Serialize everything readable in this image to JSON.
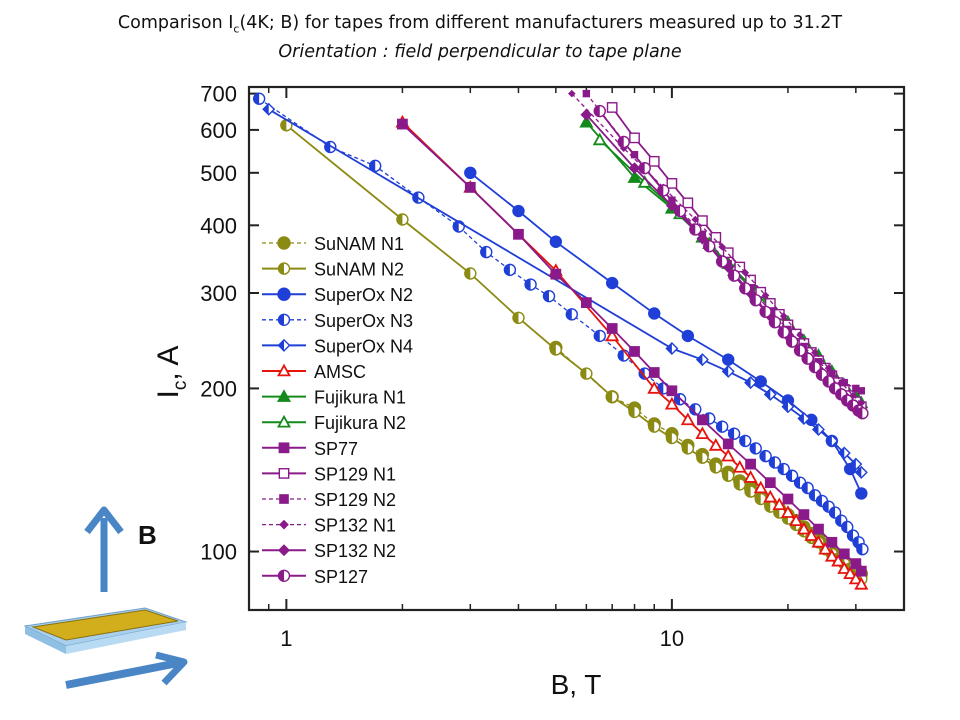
{
  "title": {
    "line1_pre": "Comparison I",
    "line1_sub": "c",
    "line1_post": "(4K; B) for tapes from different manufacturers measured up to 31.2T",
    "line2": "Orientation : field perpendicular to tape plane"
  },
  "illustration": {
    "field_label": "B",
    "colors": {
      "tape_top": "#d4b020",
      "tape_edge": "#9ec8e8",
      "arrow": "#4a86c6"
    }
  },
  "chart_data": {
    "type": "scatter",
    "xscale": "log",
    "yscale": "log",
    "xlim": [
      0.8,
      40
    ],
    "ylim": [
      78,
      720
    ],
    "xlabel": "B, T",
    "ylabel_main": "I",
    "ylabel_sub": "c",
    "ylabel_unit": ", A",
    "xticks": [
      {
        "value": 1,
        "label": "1"
      },
      {
        "value": 10,
        "label": "10"
      }
    ],
    "yticks": [
      {
        "value": 100,
        "label": "100"
      },
      {
        "value": 200,
        "label": "200"
      },
      {
        "value": 300,
        "label": "300"
      },
      {
        "value": 400,
        "label": "400"
      },
      {
        "value": 500,
        "label": "500"
      },
      {
        "value": 600,
        "label": "600"
      },
      {
        "value": 700,
        "label": "700"
      }
    ],
    "legend_position": "left",
    "series": [
      {
        "name": "SuNAM N1",
        "color": "#8b8a12",
        "marker": "circle",
        "dashed": true,
        "x": [
          5,
          7,
          8,
          9,
          10,
          11,
          12,
          13,
          14,
          15,
          16,
          17,
          18,
          19,
          20,
          21,
          22,
          23,
          24,
          25,
          26,
          27,
          28,
          29,
          30,
          31
        ],
        "y": [
          238,
          193,
          184,
          172,
          165,
          157,
          151,
          145,
          140,
          135,
          131,
          127,
          123,
          120,
          117,
          114,
          111,
          108,
          106,
          103,
          101,
          98,
          96,
          94,
          93,
          91
        ]
      },
      {
        "name": "SuNAM N2",
        "color": "#8b8a12",
        "marker": "halfcircle",
        "dashed": false,
        "x": [
          1,
          2,
          3,
          4,
          5,
          6,
          7,
          8,
          9,
          10,
          11,
          12,
          13,
          14,
          15,
          16,
          17,
          18,
          19,
          20,
          21,
          22,
          23,
          24,
          25,
          26,
          27,
          28,
          29,
          30,
          31
        ],
        "y": [
          612,
          410,
          326,
          270,
          236,
          213,
          193,
          181,
          170,
          162,
          155,
          149,
          143,
          138,
          133,
          129,
          125,
          121,
          118,
          115,
          112,
          109,
          106,
          104,
          101,
          99,
          97,
          95,
          93,
          91,
          89
        ]
      },
      {
        "name": "SuperOx N2",
        "color": "#1f3fd6",
        "marker": "circle",
        "dashed": false,
        "x": [
          3,
          4,
          5,
          7,
          9,
          11,
          14,
          17,
          20,
          23,
          26,
          29,
          31
        ],
        "y": [
          500,
          425,
          373,
          313,
          275,
          250,
          226,
          206,
          190,
          175,
          160,
          142,
          128
        ]
      },
      {
        "name": "SuperOx N3",
        "color": "#1f3fd6",
        "marker": "halfcircle",
        "dashed": true,
        "x": [
          0.85,
          1.3,
          1.7,
          2.2,
          2.8,
          3.3,
          3.8,
          4.3,
          4.8,
          5.5,
          6.5,
          7.5,
          8.5,
          9.5,
          10.5,
          11.5,
          12.5,
          13.5,
          14.5,
          15.5,
          16.5,
          17.5,
          18.5,
          19.5,
          20.5,
          21.5,
          22.5,
          23.5,
          24.5,
          25.5,
          26.5,
          27.5,
          28.5,
          29.5,
          30.5,
          31.2
        ],
        "y": [
          685,
          558,
          515,
          450,
          398,
          357,
          331,
          311,
          296,
          274,
          250,
          230,
          213,
          200,
          191,
          183,
          176,
          170,
          165,
          160,
          155,
          150,
          146,
          142,
          138,
          134,
          131,
          127,
          124,
          121,
          118,
          114,
          111,
          107,
          104,
          101
        ]
      },
      {
        "name": "SuperOx N4",
        "color": "#1f3fd6",
        "marker": "halfdiamond",
        "dashed": false,
        "x": [
          0.9,
          10,
          12,
          14,
          16,
          18,
          20,
          22,
          24,
          26,
          28,
          30,
          31
        ],
        "y": [
          655,
          237,
          226,
          215,
          205,
          195,
          185,
          176,
          168,
          160,
          152,
          145,
          140
        ]
      },
      {
        "name": "AMSC",
        "color": "#e8120c",
        "marker": "triangle",
        "dashed": false,
        "x": [
          2,
          3,
          5,
          7,
          9,
          10,
          11,
          12,
          13,
          14,
          15,
          16,
          17,
          18,
          19,
          20,
          21,
          22,
          23,
          24,
          25,
          26,
          27,
          28,
          29,
          30,
          31
        ],
        "y": [
          620,
          470,
          330,
          250,
          200,
          187,
          175,
          165,
          157,
          150,
          143,
          137,
          131,
          126,
          122,
          118,
          114,
          110,
          107,
          104,
          101,
          98,
          96,
          93,
          91,
          89,
          87
        ]
      },
      {
        "name": "Fujikura N1",
        "color": "#138a1c",
        "marker": "triangle-filled",
        "dashed": false,
        "x": [
          6,
          8,
          10,
          12,
          14,
          16,
          18,
          20,
          22,
          24,
          26,
          28,
          30,
          31
        ],
        "y": [
          620,
          490,
          430,
          380,
          340,
          310,
          285,
          265,
          245,
          230,
          215,
          203,
          193,
          188
        ]
      },
      {
        "name": "Fujikura N2",
        "color": "#138a1c",
        "marker": "triangle",
        "dashed": false,
        "x": [
          6.5,
          8.5,
          10.5,
          12.5,
          14.5,
          16.5,
          18.5,
          20.5,
          22.5,
          24.5,
          26.5,
          28.5,
          30.5
        ],
        "y": [
          575,
          480,
          420,
          370,
          330,
          300,
          276,
          256,
          238,
          223,
          210,
          198,
          190
        ]
      },
      {
        "name": "SP77",
        "color": "#8a1a8a",
        "marker": "square",
        "dashed": false,
        "x": [
          2,
          3,
          4,
          5,
          6,
          7,
          8,
          9,
          10,
          12,
          14,
          16,
          18,
          20,
          22,
          24,
          26,
          28,
          30,
          31
        ],
        "y": [
          615,
          470,
          385,
          325,
          288,
          258,
          234,
          214,
          198,
          175,
          158,
          145,
          134,
          125,
          117,
          110,
          104,
          99,
          95,
          92
        ]
      },
      {
        "name": "SP129 N1",
        "color": "#8a1a8a",
        "marker": "square-open",
        "dashed": false,
        "x": [
          7,
          8,
          9,
          10,
          11,
          12,
          13,
          14,
          15,
          16,
          17,
          18,
          19,
          20,
          21,
          22,
          23,
          24,
          25,
          26,
          27,
          28,
          29,
          30,
          31
        ],
        "y": [
          660,
          580,
          525,
          478,
          440,
          408,
          380,
          356,
          335,
          317,
          301,
          287,
          274,
          262,
          252,
          242,
          233,
          225,
          218,
          211,
          205,
          199,
          194,
          189,
          185
        ]
      },
      {
        "name": "SP129 N2",
        "color": "#8a1a8a",
        "marker": "square-small",
        "dashed": true,
        "x": [
          6,
          8,
          10,
          12,
          14,
          16,
          18,
          20,
          22,
          24,
          26,
          28,
          30,
          31
        ],
        "y": [
          700,
          540,
          445,
          385,
          340,
          305,
          278,
          257,
          239,
          224,
          213,
          205,
          200,
          198
        ]
      },
      {
        "name": "SP132 N1",
        "color": "#8a1a8a",
        "marker": "diamond-small",
        "dashed": true,
        "x": [
          5.5,
          7.5,
          9.5,
          11.5,
          13.5,
          15.5,
          17.5,
          19.5,
          21.5,
          23.5,
          25.5,
          27.5,
          29.5,
          31
        ],
        "y": [
          700,
          555,
          470,
          410,
          365,
          327,
          297,
          272,
          251,
          233,
          218,
          205,
          194,
          188
        ]
      },
      {
        "name": "SP132 N2",
        "color": "#8a1a8a",
        "marker": "diamond-filled",
        "dashed": false,
        "x": [
          6,
          8,
          10,
          12,
          14,
          16,
          18,
          20,
          22,
          24,
          26,
          28,
          30,
          31
        ],
        "y": [
          640,
          510,
          435,
          378,
          335,
          300,
          272,
          250,
          232,
          217,
          204,
          194,
          186,
          182
        ]
      },
      {
        "name": "SP127",
        "color": "#8a1a8a",
        "marker": "halfcircle",
        "dashed": false,
        "x": [
          6.5,
          7.5,
          8.5,
          9.5,
          10.5,
          11.5,
          12.5,
          13.5,
          14.5,
          15.5,
          16.5,
          17.5,
          18.5,
          19.5,
          20.5,
          21.5,
          22.5,
          23.5,
          24.5,
          25.5,
          26.5,
          27.5,
          28.5,
          29.5,
          30.5,
          31.2
        ],
        "y": [
          650,
          570,
          510,
          464,
          425,
          393,
          366,
          343,
          323,
          306,
          291,
          277,
          265,
          254,
          244,
          235,
          227,
          219,
          212,
          206,
          200,
          195,
          190,
          186,
          182,
          180
        ]
      }
    ]
  }
}
